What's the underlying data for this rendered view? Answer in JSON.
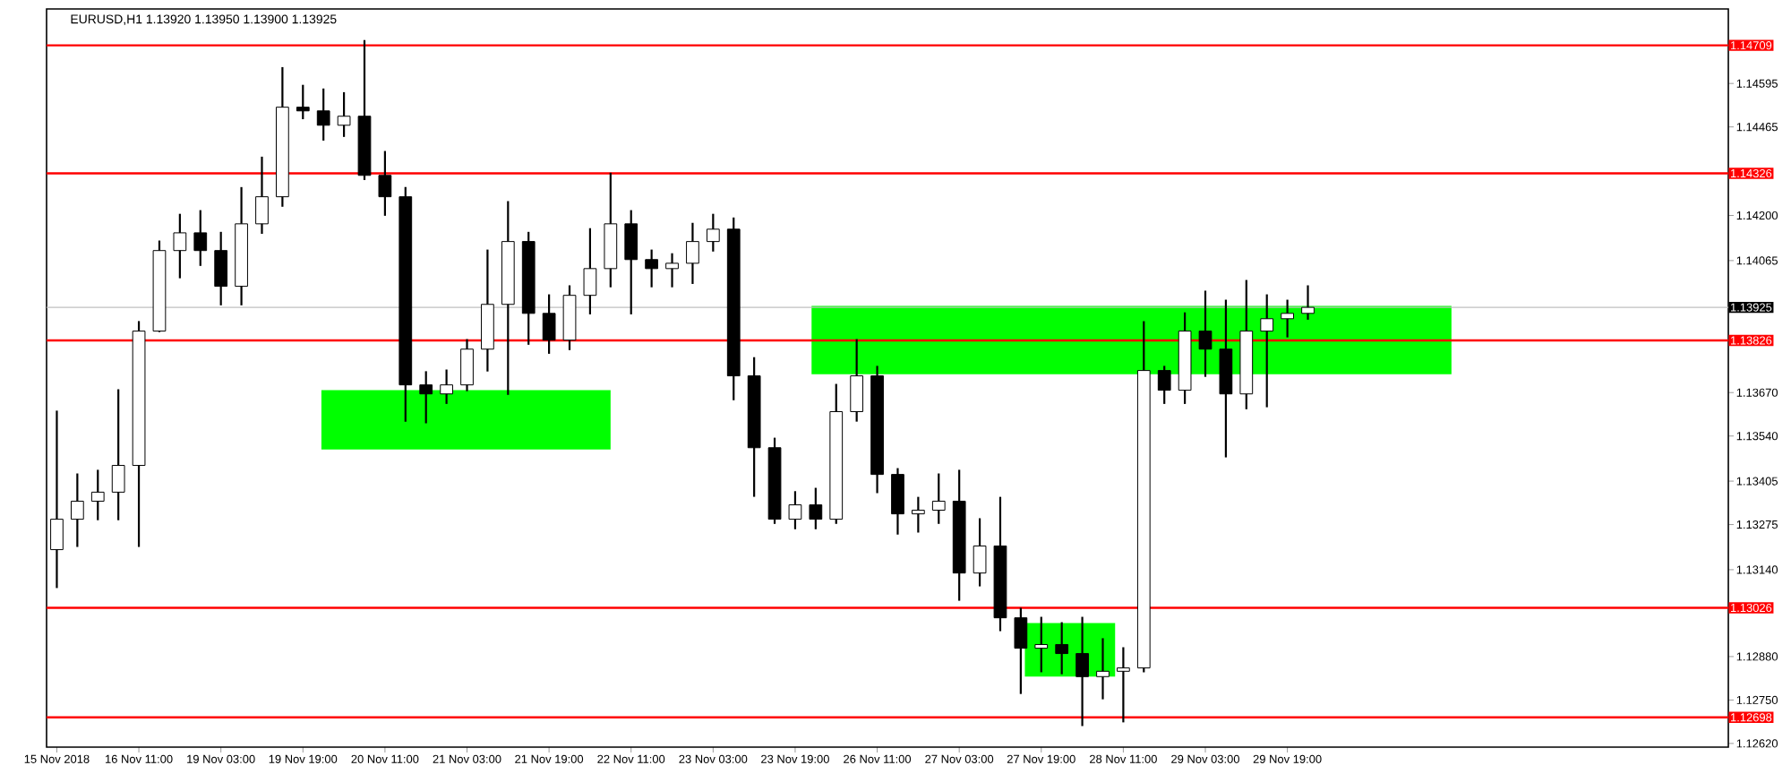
{
  "chart_data": {
    "type": "candlestick",
    "title": "EURUSD,H1  1.13920 1.13950 1.13900 1.13925",
    "categories": [
      "15 Nov 2018",
      null,
      null,
      null,
      "16 Nov 11:00",
      null,
      null,
      null,
      "19 Nov 03:00",
      null,
      null,
      null,
      "19 Nov 19:00",
      null,
      null,
      null,
      "20 Nov 11:00",
      null,
      null,
      null,
      "21 Nov 03:00",
      null,
      null,
      null,
      "21 Nov 19:00",
      null,
      null,
      null,
      "22 Nov 11:00",
      null,
      null,
      null,
      "23 Nov 03:00",
      null,
      null,
      null,
      "23 Nov 19:00",
      null,
      null,
      null,
      "26 Nov 11:00",
      null,
      null,
      null,
      "27 Nov 03:00",
      null,
      null,
      null,
      "27 Nov 19:00",
      null,
      null,
      null,
      "28 Nov 11:00",
      null,
      null,
      null,
      "29 Nov 03:00",
      null,
      null,
      null,
      "29 Nov 19:00",
      null,
      null,
      null,
      null,
      null,
      null,
      null,
      null,
      null,
      null,
      null,
      null,
      null,
      null,
      null,
      null,
      null,
      null,
      null,
      null,
      null
    ],
    "ohlc": [
      [
        1.132,
        1.13613,
        1.13088,
        1.13291
      ],
      [
        1.13291,
        1.13425,
        1.13211,
        1.13345
      ],
      [
        1.13345,
        1.13436,
        1.13291,
        1.13372
      ],
      [
        1.13372,
        1.13677,
        1.13291,
        1.13452
      ],
      [
        1.13452,
        1.13881,
        1.13211,
        1.13854
      ],
      [
        1.13854,
        1.14122,
        1.13854,
        1.14095
      ],
      [
        1.14095,
        1.14202,
        1.14015,
        1.14148
      ],
      [
        1.14148,
        1.14213,
        1.14052,
        1.14095
      ],
      [
        1.14095,
        1.14148,
        1.13934,
        1.13988
      ],
      [
        1.13988,
        1.14282,
        1.13934,
        1.14175
      ],
      [
        1.14175,
        1.14373,
        1.14148,
        1.14256
      ],
      [
        1.14256,
        1.14641,
        1.14229,
        1.14524
      ],
      [
        1.14524,
        1.14588,
        1.14491,
        1.14513
      ],
      [
        1.14513,
        1.14577,
        1.14427,
        1.1447
      ],
      [
        1.1447,
        1.14566,
        1.14438,
        1.14497
      ],
      [
        1.14497,
        1.14722,
        1.14309,
        1.1432
      ],
      [
        1.1432,
        1.1439,
        1.14202,
        1.14256
      ],
      [
        1.14256,
        1.14282,
        1.13586,
        1.13693
      ],
      [
        1.13693,
        1.13731,
        1.13581,
        1.13666
      ],
      [
        1.13666,
        1.13736,
        1.13639,
        1.13693
      ],
      [
        1.13693,
        1.13827,
        1.13677,
        1.138
      ],
      [
        1.138,
        1.14095,
        1.13736,
        1.13934
      ],
      [
        1.13934,
        1.1424,
        1.13666,
        1.14122
      ],
      [
        1.14122,
        1.14148,
        1.13816,
        1.13907
      ],
      [
        1.13907,
        1.13961,
        1.13789,
        1.13827
      ],
      [
        1.13827,
        1.13988,
        1.138,
        1.13961
      ],
      [
        1.13961,
        1.14159,
        1.13907,
        1.14041
      ],
      [
        1.14041,
        1.14325,
        1.13988,
        1.14175
      ],
      [
        1.14175,
        1.14213,
        1.13907,
        1.14068
      ],
      [
        1.14068,
        1.14095,
        1.13988,
        1.14041
      ],
      [
        1.14041,
        1.14084,
        1.13988,
        1.14057
      ],
      [
        1.14057,
        1.14175,
        1.13998,
        1.14122
      ],
      [
        1.14122,
        1.14202,
        1.14095,
        1.14159
      ],
      [
        1.14159,
        1.14191,
        1.1365,
        1.1372
      ],
      [
        1.1372,
        1.13773,
        1.13361,
        1.13505
      ],
      [
        1.13505,
        1.13532,
        1.1328,
        1.13291
      ],
      [
        1.13291,
        1.13372,
        1.13264,
        1.13334
      ],
      [
        1.13334,
        1.13382,
        1.13264,
        1.13291
      ],
      [
        1.13291,
        1.13693,
        1.1328,
        1.13613
      ],
      [
        1.13613,
        1.13827,
        1.13586,
        1.1372
      ],
      [
        1.1372,
        1.13747,
        1.13372,
        1.13425
      ],
      [
        1.13425,
        1.13441,
        1.13248,
        1.13307
      ],
      [
        1.13307,
        1.13355,
        1.13254,
        1.13318
      ],
      [
        1.13318,
        1.13425,
        1.1328,
        1.13345
      ],
      [
        1.13345,
        1.13436,
        1.1305,
        1.1313
      ],
      [
        1.1313,
        1.13291,
        1.13093,
        1.13211
      ],
      [
        1.13211,
        1.13355,
        1.12959,
        1.12996
      ],
      [
        1.12996,
        1.13023,
        1.12771,
        1.12905
      ],
      [
        1.12905,
        1.12996,
        1.12836,
        1.12916
      ],
      [
        1.12916,
        1.1298,
        1.1283,
        1.12889
      ],
      [
        1.12889,
        1.12996,
        1.12675,
        1.1282
      ],
      [
        1.1282,
        1.12932,
        1.12755,
        1.12836
      ],
      [
        1.12836,
        1.12905,
        1.12686,
        1.12846
      ],
      [
        1.12846,
        1.13881,
        1.12836,
        1.13736
      ],
      [
        1.13736,
        1.13747,
        1.13639,
        1.13677
      ],
      [
        1.13677,
        1.13907,
        1.13639,
        1.13854
      ],
      [
        1.13854,
        1.13972,
        1.1372,
        1.138
      ],
      [
        1.138,
        1.13945,
        1.13479,
        1.13666
      ],
      [
        1.13666,
        1.14004,
        1.13623,
        1.13854
      ],
      [
        1.13854,
        1.13961,
        1.13629,
        1.13891
      ],
      [
        1.13891,
        1.13945,
        1.13838,
        1.13907
      ],
      [
        1.13907,
        1.13988,
        1.13891,
        1.13925
      ],
      null,
      null,
      null,
      null,
      null,
      null,
      null,
      null,
      null,
      null,
      null,
      null,
      null,
      null,
      null,
      null,
      null,
      null,
      null,
      null
    ],
    "ylim": [
      1.12609,
      1.14818
    ],
    "yticks": [
      {
        "value": 1.14595,
        "label": "1.14595"
      },
      {
        "value": 1.14465,
        "label": "1.14465"
      },
      {
        "value": 1.142,
        "label": "1.14200"
      },
      {
        "value": 1.14065,
        "label": "1.14065"
      },
      {
        "value": 1.1367,
        "label": "1.13670"
      },
      {
        "value": 1.1354,
        "label": "1.13540"
      },
      {
        "value": 1.13405,
        "label": "1.13405"
      },
      {
        "value": 1.13275,
        "label": "1.13275"
      },
      {
        "value": 1.1314,
        "label": "1.13140"
      },
      {
        "value": 1.1288,
        "label": "1.12880"
      },
      {
        "value": 1.1275,
        "label": "1.12750"
      },
      {
        "value": 1.1262,
        "label": "1.12620"
      }
    ],
    "ref_lines": [
      {
        "axis": "y",
        "value": 1.14709,
        "label": "1.14709",
        "color": "#ff0000"
      },
      {
        "axis": "y",
        "value": 1.14326,
        "label": "1.14326",
        "color": "#ff0000"
      },
      {
        "axis": "y",
        "value": 1.13925,
        "label": "1.13925",
        "color": "#c0c0c0"
      },
      {
        "axis": "y",
        "value": 1.13826,
        "label": "1.13826",
        "color": "#ff0000"
      },
      {
        "axis": "y",
        "value": 1.13026,
        "label": "1.13026",
        "color": "#ff0000"
      },
      {
        "axis": "y",
        "value": 1.12698,
        "label": "1.12698",
        "color": "#ff0000"
      }
    ]
  }
}
